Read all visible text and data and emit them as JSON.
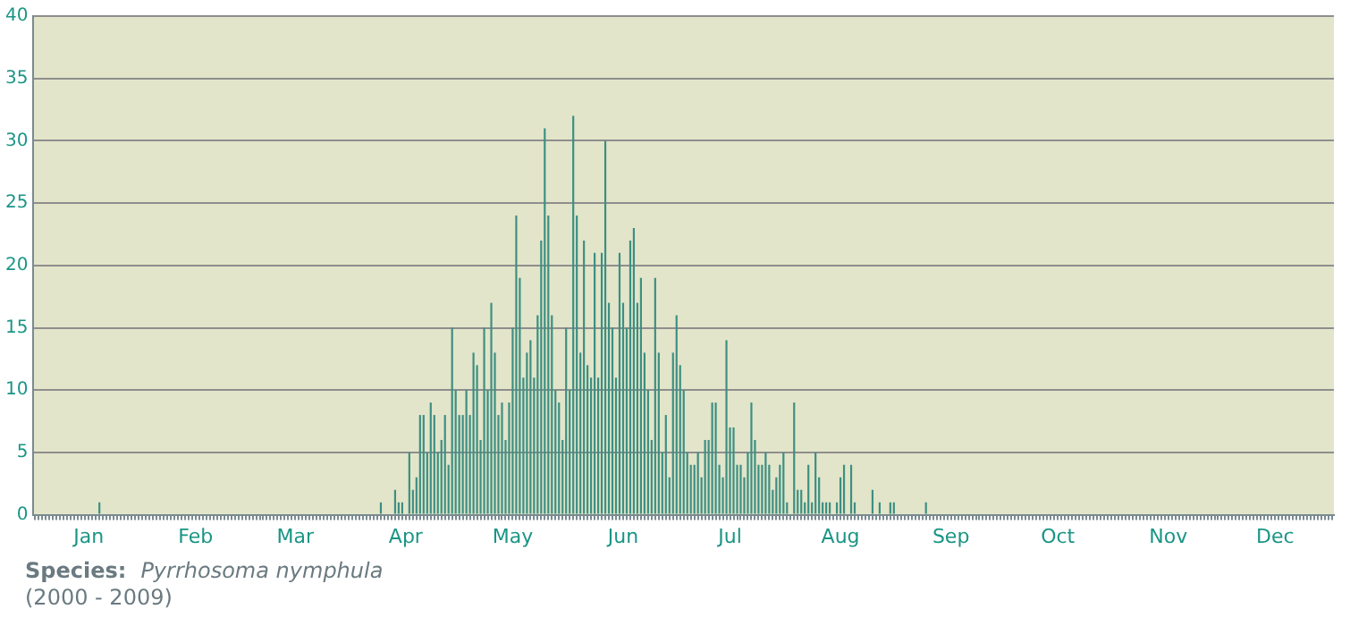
{
  "chart_data": {
    "type": "bar",
    "categories": [
      null,
      null,
      null,
      null,
      null,
      null,
      null,
      null,
      null,
      null,
      null,
      null,
      null,
      null,
      null,
      "Jan",
      null,
      null,
      null,
      null,
      null,
      null,
      null,
      null,
      null,
      null,
      null,
      null,
      null,
      null,
      null,
      null,
      null,
      null,
      null,
      null,
      null,
      null,
      null,
      null,
      null,
      null,
      null,
      null,
      null,
      "Feb",
      null,
      null,
      null,
      null,
      null,
      null,
      null,
      null,
      null,
      null,
      null,
      null,
      null,
      null,
      null,
      null,
      null,
      null,
      null,
      null,
      null,
      null,
      null,
      null,
      null,
      null,
      null,
      "Mar",
      null,
      null,
      null,
      null,
      null,
      null,
      null,
      null,
      null,
      null,
      null,
      null,
      null,
      null,
      null,
      null,
      null,
      null,
      null,
      null,
      null,
      null,
      null,
      null,
      null,
      null,
      null,
      null,
      null,
      null,
      "Apr",
      null,
      null,
      null,
      null,
      null,
      null,
      null,
      null,
      null,
      null,
      null,
      null,
      null,
      null,
      null,
      null,
      null,
      null,
      null,
      null,
      null,
      null,
      null,
      null,
      null,
      null,
      null,
      null,
      null,
      "May",
      null,
      null,
      null,
      null,
      null,
      null,
      null,
      null,
      null,
      null,
      null,
      null,
      null,
      null,
      null,
      null,
      null,
      null,
      null,
      null,
      null,
      null,
      null,
      null,
      null,
      null,
      null,
      null,
      null,
      null,
      "Jun",
      null,
      null,
      null,
      null,
      null,
      null,
      null,
      null,
      null,
      null,
      null,
      null,
      null,
      null,
      null,
      null,
      null,
      null,
      null,
      null,
      null,
      null,
      null,
      null,
      null,
      null,
      null,
      null,
      null,
      "Jul",
      null,
      null,
      null,
      null,
      null,
      null,
      null,
      null,
      null,
      null,
      null,
      null,
      null,
      null,
      null,
      null,
      null,
      null,
      null,
      null,
      null,
      null,
      null,
      null,
      null,
      null,
      null,
      null,
      null,
      null,
      "Aug",
      null,
      null,
      null,
      null,
      null,
      null,
      null,
      null,
      null,
      null,
      null,
      null,
      null,
      null,
      null,
      null,
      null,
      null,
      null,
      null,
      null,
      null,
      null,
      null,
      null,
      null,
      null,
      null,
      null,
      null,
      "Sep",
      null,
      null,
      null,
      null,
      null,
      null,
      null,
      null,
      null,
      null,
      null,
      null,
      null,
      null,
      null,
      null,
      null,
      null,
      null,
      null,
      null,
      null,
      null,
      null,
      null,
      null,
      null,
      null,
      null,
      "Oct",
      null,
      null,
      null,
      null,
      null,
      null,
      null,
      null,
      null,
      null,
      null,
      null,
      null,
      null,
      null,
      null,
      null,
      null,
      null,
      null,
      null,
      null,
      null,
      null,
      null,
      null,
      null,
      null,
      null,
      null,
      "Nov",
      null,
      null,
      null,
      null,
      null,
      null,
      null,
      null,
      null,
      null,
      null,
      null,
      null,
      null,
      null,
      null,
      null,
      null,
      null,
      null,
      null,
      null,
      null,
      null,
      null,
      null,
      null,
      null,
      null,
      "Dec",
      null,
      null,
      null,
      null,
      null,
      null,
      null,
      null,
      null,
      null,
      null,
      null,
      null,
      null,
      null,
      null
    ],
    "values": [
      0,
      0,
      0,
      0,
      0,
      0,
      0,
      0,
      0,
      0,
      0,
      0,
      0,
      0,
      0,
      0,
      0,
      0,
      1,
      0,
      0,
      0,
      0,
      0,
      0,
      0,
      0,
      0,
      0,
      0,
      0,
      0,
      0,
      0,
      0,
      0,
      0,
      0,
      0,
      0,
      0,
      0,
      0,
      0,
      0,
      0,
      0,
      0,
      0,
      0,
      0,
      0,
      0,
      0,
      0,
      0,
      0,
      0,
      0,
      0,
      0,
      0,
      0,
      0,
      0,
      0,
      0,
      0,
      0,
      0,
      0,
      0,
      0,
      0,
      0,
      0,
      0,
      0,
      0,
      0,
      0,
      0,
      0,
      0,
      0,
      0,
      0,
      0,
      0,
      0,
      0,
      0,
      0,
      0,
      0,
      0,
      0,
      1,
      0,
      0,
      0,
      2,
      1,
      1,
      0,
      5,
      2,
      3,
      8,
      8,
      5,
      9,
      8,
      5,
      6,
      8,
      4,
      15,
      10,
      8,
      8,
      10,
      8,
      13,
      12,
      6,
      15,
      10,
      17,
      13,
      8,
      9,
      6,
      9,
      15,
      24,
      19,
      11,
      13,
      14,
      11,
      16,
      22,
      31,
      24,
      16,
      10,
      9,
      6,
      15,
      10,
      32,
      24,
      13,
      22,
      12,
      11,
      21,
      11,
      21,
      30,
      17,
      15,
      11,
      21,
      17,
      15,
      22,
      23,
      17,
      19,
      13,
      10,
      6,
      19,
      13,
      5,
      8,
      3,
      13,
      16,
      12,
      10,
      5,
      4,
      4,
      5,
      3,
      6,
      6,
      9,
      9,
      4,
      3,
      14,
      7,
      7,
      4,
      4,
      3,
      5,
      9,
      6,
      4,
      4,
      5,
      4,
      2,
      3,
      4,
      5,
      1,
      0,
      9,
      2,
      2,
      1,
      4,
      1,
      5,
      3,
      1,
      1,
      1,
      0,
      1,
      3,
      4,
      0,
      4,
      1,
      0,
      0,
      0,
      0,
      2,
      0,
      1,
      0,
      0,
      1,
      1,
      0,
      0,
      0,
      0,
      0,
      0,
      0,
      0,
      1,
      0,
      0,
      0,
      0,
      0,
      0,
      0,
      0,
      0,
      0,
      0,
      0,
      0,
      0,
      0,
      0,
      0,
      0,
      0,
      0,
      0,
      0,
      0,
      0,
      0,
      0,
      0,
      0,
      0,
      0,
      0,
      0,
      0,
      0,
      0,
      0,
      0,
      0,
      0,
      0,
      0,
      0,
      0,
      0,
      0,
      0,
      0,
      0,
      0,
      0,
      0,
      0,
      0,
      0,
      0,
      0,
      0,
      0,
      0,
      0,
      0,
      0,
      0,
      0,
      0,
      0,
      0,
      0,
      0,
      0,
      0,
      0,
      0,
      0,
      0,
      0,
      0,
      0,
      0,
      0,
      0,
      0,
      0,
      0,
      0,
      0,
      0,
      0,
      0,
      0,
      0,
      0,
      0,
      0,
      0,
      0,
      0,
      0,
      0,
      0,
      0,
      0,
      0,
      0,
      0,
      0,
      0,
      0,
      0,
      0,
      0,
      0,
      0,
      0
    ],
    "color": "#3d8f82",
    "ylim": [
      0,
      40
    ],
    "yticks": [
      0,
      5,
      10,
      15,
      20,
      25,
      30,
      35,
      40
    ],
    "grid": "y",
    "annotations": [
      "Species:",
      "Pyrrhosoma nymphula",
      "(2000 - 2009)"
    ]
  }
}
